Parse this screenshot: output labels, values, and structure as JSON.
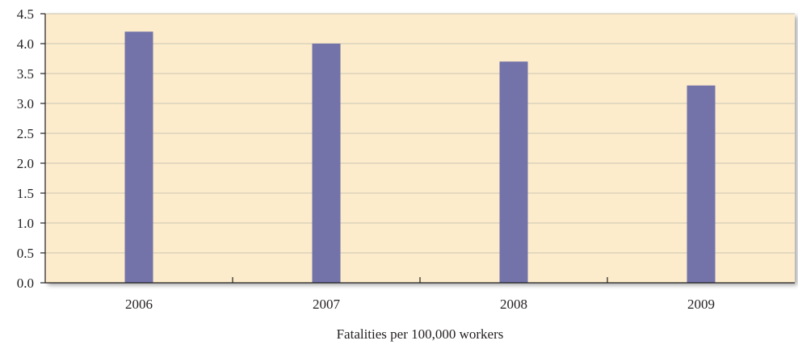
{
  "chart_data": {
    "type": "bar",
    "categories": [
      "2006",
      "2007",
      "2008",
      "2009"
    ],
    "values": [
      4.2,
      4.0,
      3.7,
      3.3
    ],
    "title": "",
    "xlabel": "Fatalities per 100,000 workers",
    "ylabel": "",
    "ylim": [
      0,
      4.5
    ],
    "yticks": [
      "0.0",
      "0.5",
      "1.0",
      "1.5",
      "2.0",
      "2.5",
      "3.0",
      "3.5",
      "4.0",
      "4.5"
    ],
    "grid": true,
    "legend": "none"
  },
  "colors": {
    "plot_background": "#fdeccb",
    "bar": "#7373aa",
    "gridline": "#c9c3b6",
    "axis": "#231f20"
  }
}
